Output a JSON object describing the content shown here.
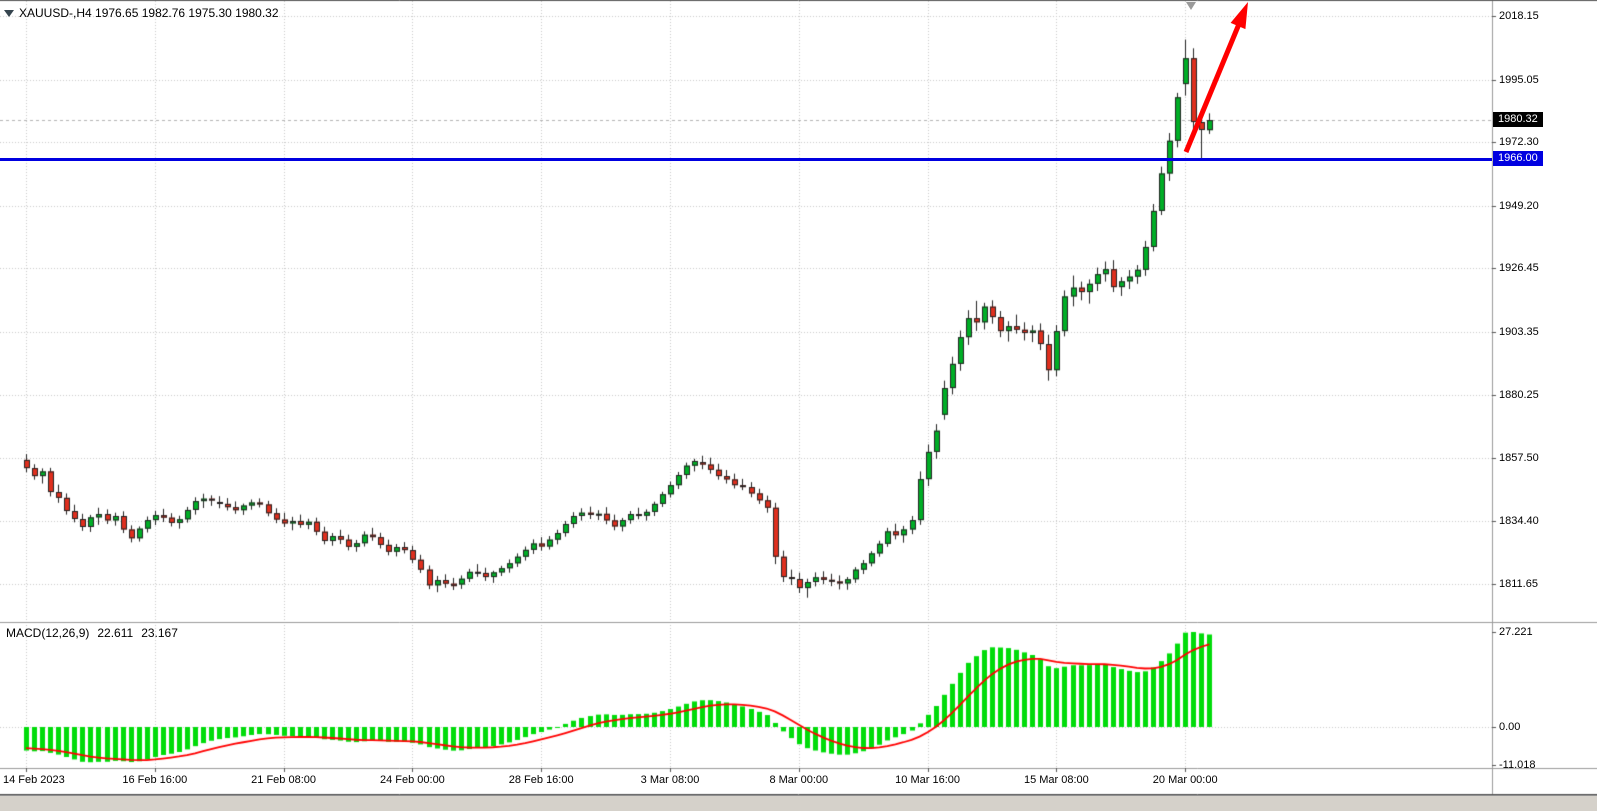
{
  "header": {
    "quote_text": "XAUUSD-,H4  1976.65 1982.76 1975.30 1980.32",
    "symbol": "XAUUSD-",
    "timeframe": "H4",
    "open": "1976.65",
    "high": "1982.76",
    "low": "1975.30",
    "close": "1980.32"
  },
  "indicator": {
    "name": "MACD(12,26,9)",
    "main_value": "22.611",
    "signal_value": "23.167"
  },
  "price_axis": {
    "current_price_label": "1980.32"
  },
  "colors": {
    "bull": "#00AE26",
    "bear": "#DF2F1E",
    "candle_border": "#222222",
    "grid": "#c9c9c9",
    "divider": "#9a9a9a",
    "frame": "#5a5a5a",
    "macd_hist": "#00DC0A",
    "macd_signal": "#FF0000",
    "support_line": "#0000E0",
    "badge_price_bg": "#000000",
    "badge_line_bg": "#0000E0",
    "current_price_line": "#b4b4b4",
    "arrow": "#FF0000",
    "axis_text": "#000000",
    "background": "#FFFFFF"
  },
  "chart_data": [
    {
      "type": "candlestick",
      "symbol": "XAUUSD-",
      "timeframe": "H4",
      "x_axis": {
        "tick_labels": [
          "14 Feb 2023",
          "16 Feb 16:00",
          "21 Feb 08:00",
          "24 Feb 00:00",
          "28 Feb 16:00",
          "3 Mar 08:00",
          "8 Mar 00:00",
          "10 Mar 16:00",
          "15 Mar 08:00",
          "20 Mar 00:00"
        ],
        "tick_bars": [
          0,
          16,
          32,
          48,
          64,
          80,
          96,
          112,
          128,
          144
        ],
        "bar_interval_hours": 4
      },
      "y_axis": {
        "ticks": [
          2018.15,
          1995.05,
          1972.3,
          1949.2,
          1926.45,
          1903.35,
          1880.25,
          1857.5,
          1834.4,
          1811.65
        ],
        "visible_range": [
          1799.0,
          2024.5
        ],
        "grid": "dotted"
      },
      "ohlc": [
        [
          1856.8,
          1858.9,
          1852.3,
          1853.8
        ],
        [
          1853.8,
          1855.2,
          1849.6,
          1850.9
        ],
        [
          1850.9,
          1853.7,
          1848.2,
          1852.6
        ],
        [
          1852.6,
          1853.9,
          1843.5,
          1845.1
        ],
        [
          1845.1,
          1847.8,
          1841.2,
          1843.0
        ],
        [
          1843.0,
          1844.6,
          1836.9,
          1838.2
        ],
        [
          1838.2,
          1840.5,
          1834.1,
          1835.3
        ],
        [
          1835.3,
          1837.2,
          1831.0,
          1832.4
        ],
        [
          1832.4,
          1836.8,
          1830.6,
          1835.9
        ],
        [
          1835.9,
          1839.4,
          1833.2,
          1837.1
        ],
        [
          1837.1,
          1838.8,
          1833.5,
          1834.8
        ],
        [
          1834.8,
          1837.6,
          1832.9,
          1836.4
        ],
        [
          1836.4,
          1838.1,
          1830.2,
          1831.5
        ],
        [
          1831.5,
          1833.0,
          1826.8,
          1828.3
        ],
        [
          1828.3,
          1832.6,
          1827.1,
          1831.8
        ],
        [
          1831.8,
          1836.2,
          1830.4,
          1834.9
        ],
        [
          1834.9,
          1838.3,
          1833.1,
          1836.7
        ],
        [
          1836.7,
          1839.0,
          1834.2,
          1835.8
        ],
        [
          1835.8,
          1837.4,
          1832.6,
          1833.9
        ],
        [
          1833.9,
          1836.5,
          1831.8,
          1835.2
        ],
        [
          1835.2,
          1839.7,
          1834.0,
          1838.6
        ],
        [
          1838.6,
          1843.2,
          1836.9,
          1841.8
        ],
        [
          1841.8,
          1844.5,
          1839.3,
          1842.7
        ],
        [
          1842.7,
          1843.9,
          1840.1,
          1842.1
        ],
        [
          1841.5,
          1843.6,
          1839.2,
          1840.8
        ],
        [
          1840.8,
          1842.9,
          1838.4,
          1839.6
        ],
        [
          1839.6,
          1841.7,
          1837.2,
          1838.5
        ],
        [
          1838.5,
          1840.9,
          1836.8,
          1840.2
        ],
        [
          1840.2,
          1842.4,
          1838.7,
          1841.3
        ],
        [
          1841.3,
          1842.8,
          1839.5,
          1840.6
        ],
        [
          1840.6,
          1841.9,
          1836.3,
          1837.4
        ],
        [
          1837.4,
          1839.2,
          1833.8,
          1835.1
        ],
        [
          1835.1,
          1837.6,
          1832.4,
          1833.7
        ],
        [
          1833.7,
          1836.1,
          1831.2,
          1834.6
        ],
        [
          1834.6,
          1836.9,
          1832.1,
          1833.2
        ],
        [
          1833.2,
          1835.4,
          1831.6,
          1834.3
        ],
        [
          1834.3,
          1835.8,
          1829.4,
          1830.7
        ],
        [
          1830.7,
          1832.5,
          1826.1,
          1827.3
        ],
        [
          1827.3,
          1830.2,
          1825.6,
          1829.1
        ],
        [
          1829.1,
          1831.4,
          1826.2,
          1827.8
        ],
        [
          1827.8,
          1829.6,
          1823.9,
          1825.2
        ],
        [
          1825.2,
          1827.7,
          1823.4,
          1826.5
        ],
        [
          1826.5,
          1830.8,
          1825.3,
          1829.6
        ],
        [
          1829.6,
          1832.1,
          1827.4,
          1828.7
        ],
        [
          1828.7,
          1830.3,
          1824.6,
          1825.9
        ],
        [
          1825.9,
          1827.8,
          1822.1,
          1823.4
        ],
        [
          1823.4,
          1826.2,
          1821.7,
          1825.1
        ],
        [
          1825.1,
          1826.9,
          1822.8,
          1824.0
        ],
        [
          1824.0,
          1825.6,
          1819.2,
          1820.5
        ],
        [
          1820.5,
          1822.3,
          1815.7,
          1816.9
        ],
        [
          1816.9,
          1818.4,
          1809.8,
          1811.2
        ],
        [
          1811.2,
          1814.6,
          1808.7,
          1813.1
        ],
        [
          1813.1,
          1815.2,
          1810.3,
          1811.8
        ],
        [
          1811.8,
          1813.9,
          1809.5,
          1810.9
        ],
        [
          1811.5,
          1814.8,
          1809.9,
          1813.6
        ],
        [
          1813.6,
          1817.2,
          1812.4,
          1816.1
        ],
        [
          1816.1,
          1818.9,
          1814.3,
          1815.7
        ],
        [
          1815.7,
          1817.6,
          1812.8,
          1814.2
        ],
        [
          1814.2,
          1816.5,
          1812.1,
          1815.9
        ],
        [
          1815.9,
          1818.3,
          1814.6,
          1817.4
        ],
        [
          1817.4,
          1820.6,
          1815.8,
          1819.2
        ],
        [
          1819.2,
          1822.8,
          1817.9,
          1821.6
        ],
        [
          1821.6,
          1825.3,
          1820.2,
          1824.1
        ],
        [
          1824.1,
          1827.9,
          1822.6,
          1826.4
        ],
        [
          1826.4,
          1828.7,
          1823.8,
          1825.3
        ],
        [
          1825.3,
          1829.1,
          1824.2,
          1827.8
        ],
        [
          1827.8,
          1831.4,
          1826.1,
          1830.2
        ],
        [
          1830.2,
          1834.6,
          1828.9,
          1833.5
        ],
        [
          1833.5,
          1837.8,
          1832.1,
          1836.4
        ],
        [
          1836.4,
          1839.2,
          1834.7,
          1837.6
        ],
        [
          1837.6,
          1839.8,
          1835.3,
          1836.8
        ],
        [
          1836.8,
          1838.5,
          1834.9,
          1837.2
        ],
        [
          1837.2,
          1839.6,
          1833.4,
          1834.8
        ],
        [
          1834.8,
          1836.9,
          1831.2,
          1832.6
        ],
        [
          1832.6,
          1835.7,
          1830.8,
          1834.9
        ],
        [
          1834.9,
          1838.2,
          1833.6,
          1837.1
        ],
        [
          1837.1,
          1839.4,
          1835.2,
          1836.5
        ],
        [
          1836.5,
          1838.8,
          1834.7,
          1837.9
        ],
        [
          1837.9,
          1841.6,
          1836.4,
          1840.8
        ],
        [
          1840.8,
          1845.2,
          1839.7,
          1844.3
        ],
        [
          1844.3,
          1848.9,
          1843.1,
          1847.6
        ],
        [
          1847.6,
          1852.4,
          1846.2,
          1851.3
        ],
        [
          1851.3,
          1855.8,
          1849.9,
          1854.7
        ],
        [
          1854.7,
          1857.2,
          1852.6,
          1856.4
        ],
        [
          1856.0,
          1858.3,
          1853.4,
          1855.1
        ],
        [
          1855.1,
          1857.6,
          1851.8,
          1853.2
        ],
        [
          1853.2,
          1855.4,
          1849.6,
          1850.9
        ],
        [
          1850.9,
          1853.1,
          1848.2,
          1849.7
        ],
        [
          1849.7,
          1851.8,
          1846.4,
          1847.6
        ],
        [
          1847.6,
          1849.9,
          1845.8,
          1846.9
        ],
        [
          1846.9,
          1848.7,
          1843.2,
          1844.6
        ],
        [
          1844.6,
          1846.3,
          1840.8,
          1842.1
        ],
        [
          1842.1,
          1843.8,
          1837.6,
          1839.4
        ],
        [
          1839.4,
          1841.2,
          1818.9,
          1821.6
        ],
        [
          1821.6,
          1823.8,
          1812.4,
          1814.2
        ],
        [
          1814.2,
          1816.9,
          1811.3,
          1813.5
        ],
        [
          1813.5,
          1815.8,
          1808.4,
          1810.2
        ],
        [
          1810.2,
          1813.6,
          1806.7,
          1812.4
        ],
        [
          1812.4,
          1815.9,
          1810.8,
          1814.1
        ],
        [
          1814.1,
          1816.3,
          1811.6,
          1813.2
        ],
        [
          1813.2,
          1815.4,
          1810.9,
          1812.6
        ],
        [
          1812.6,
          1814.8,
          1809.7,
          1811.9
        ],
        [
          1811.9,
          1814.2,
          1809.6,
          1813.4
        ],
        [
          1813.4,
          1817.8,
          1812.1,
          1816.9
        ],
        [
          1816.9,
          1820.4,
          1815.3,
          1819.2
        ],
        [
          1819.2,
          1823.6,
          1818.1,
          1822.8
        ],
        [
          1822.8,
          1827.4,
          1821.6,
          1826.3
        ],
        [
          1826.3,
          1832.1,
          1825.2,
          1830.8
        ],
        [
          1830.8,
          1833.6,
          1827.9,
          1829.4
        ],
        [
          1829.4,
          1832.8,
          1826.7,
          1831.5
        ],
        [
          1831.5,
          1836.4,
          1829.8,
          1834.9
        ],
        [
          1834.9,
          1852.6,
          1833.2,
          1849.8
        ],
        [
          1849.8,
          1862.4,
          1847.3,
          1859.7
        ],
        [
          1859.7,
          1869.8,
          1857.2,
          1867.4
        ],
        [
          1873.2,
          1885.6,
          1871.4,
          1882.9
        ],
        [
          1882.9,
          1894.3,
          1880.6,
          1891.7
        ],
        [
          1891.7,
          1903.8,
          1889.2,
          1901.4
        ],
        [
          1901.4,
          1911.2,
          1898.6,
          1908.3
        ],
        [
          1908.3,
          1914.6,
          1903.7,
          1906.8
        ],
        [
          1906.8,
          1913.9,
          1904.2,
          1912.5
        ],
        [
          1912.5,
          1914.8,
          1906.3,
          1908.7
        ],
        [
          1908.7,
          1910.9,
          1901.4,
          1903.6
        ],
        [
          1903.6,
          1907.2,
          1899.8,
          1905.4
        ],
        [
          1905.4,
          1909.6,
          1902.7,
          1904.1
        ],
        [
          1904.1,
          1906.8,
          1900.2,
          1902.9
        ],
        [
          1902.9,
          1905.7,
          1899.6,
          1903.8
        ],
        [
          1903.8,
          1906.4,
          1896.7,
          1898.9
        ],
        [
          1898.9,
          1902.3,
          1885.6,
          1889.4
        ],
        [
          1889.4,
          1905.8,
          1887.2,
          1903.6
        ],
        [
          1903.6,
          1918.4,
          1901.7,
          1916.2
        ],
        [
          1916.2,
          1923.8,
          1912.6,
          1919.4
        ],
        [
          1919.4,
          1921.6,
          1914.8,
          1917.8
        ],
        [
          1917.8,
          1922.4,
          1913.6,
          1920.8
        ],
        [
          1920.8,
          1926.7,
          1918.2,
          1924.3
        ],
        [
          1924.3,
          1928.9,
          1921.6,
          1926.1
        ],
        [
          1926.1,
          1929.4,
          1917.8,
          1919.6
        ],
        [
          1919.6,
          1923.2,
          1916.4,
          1921.7
        ],
        [
          1921.7,
          1925.8,
          1918.9,
          1923.4
        ],
        [
          1923.4,
          1927.6,
          1920.8,
          1925.9
        ],
        [
          1925.9,
          1936.4,
          1923.7,
          1934.2
        ],
        [
          1934.2,
          1949.8,
          1932.6,
          1947.3
        ],
        [
          1947.3,
          1963.4,
          1945.8,
          1960.9
        ],
        [
          1960.9,
          1975.6,
          1958.2,
          1972.8
        ],
        [
          1972.8,
          1990.2,
          1970.4,
          1988.6
        ],
        [
          1993.4,
          2009.6,
          1989.2,
          2002.8
        ],
        [
          2002.8,
          2006.4,
          1974.3,
          1979.6
        ],
        [
          1979.6,
          1984.2,
          1966.1,
          1976.7
        ],
        [
          1976.65,
          1982.76,
          1975.3,
          1980.32
        ]
      ],
      "annotations": {
        "support_line": {
          "price": 1966.0,
          "label": "1966.00",
          "style": "thick horizontal line"
        },
        "current_price": {
          "value": 1980.32,
          "label": "1980.32"
        },
        "trend_arrow": {
          "description": "thick red arrow pointing up-right above the last candles",
          "direction": "up-right"
        }
      }
    },
    {
      "type": "macd",
      "label": "MACD(12,26,9)",
      "main_value": 22.611,
      "signal_value": 23.167,
      "y_axis": {
        "ticks": [
          27.221,
          0,
          -11.018
        ],
        "tick_labels": [
          "27.221",
          "0.00",
          "-11.018"
        ]
      },
      "derivation": "main = EMA12(close) - EMA26(close); signal = EMA9(main); drawn as green histogram with red signal line"
    }
  ]
}
